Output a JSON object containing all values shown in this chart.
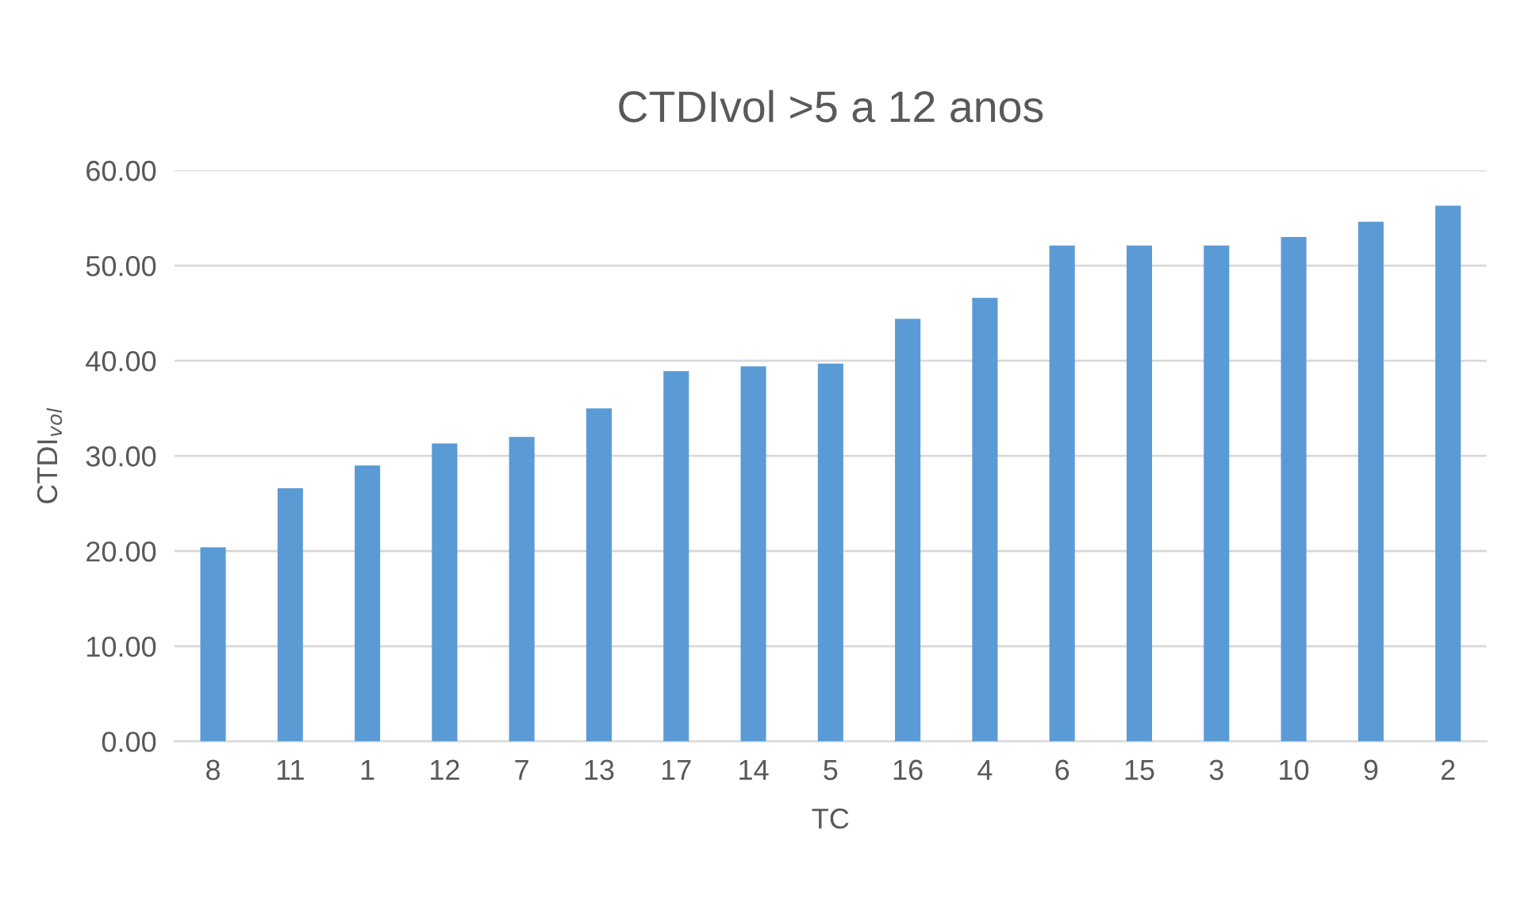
{
  "chart_data": {
    "type": "bar",
    "title": "CTDIvol >5 a 12 anos",
    "xlabel": "TC",
    "ylabel": "CTDI$_{vol}$",
    "categories": [
      "8",
      "11",
      "1",
      "12",
      "7",
      "13",
      "17",
      "14",
      "5",
      "16",
      "4",
      "6",
      "15",
      "3",
      "10",
      "9",
      "2"
    ],
    "values": [
      20.4,
      26.6,
      29.0,
      31.3,
      32.0,
      35.0,
      38.9,
      39.4,
      39.7,
      44.4,
      46.6,
      52.1,
      52.1,
      52.1,
      53.0,
      54.6,
      56.3
    ],
    "color": "#5b9bd5",
    "ylim": [
      0,
      60
    ],
    "yticks": [
      {
        "value": 0,
        "label": "0.00"
      },
      {
        "value": 10,
        "label": "10.00"
      },
      {
        "value": 20,
        "label": "20.00"
      },
      {
        "value": 30,
        "label": "30.00"
      },
      {
        "value": 40,
        "label": "40.00"
      },
      {
        "value": 50,
        "label": "50.00"
      },
      {
        "value": 60,
        "label": "60.00"
      }
    ],
    "grid": "y",
    "legend": false
  }
}
